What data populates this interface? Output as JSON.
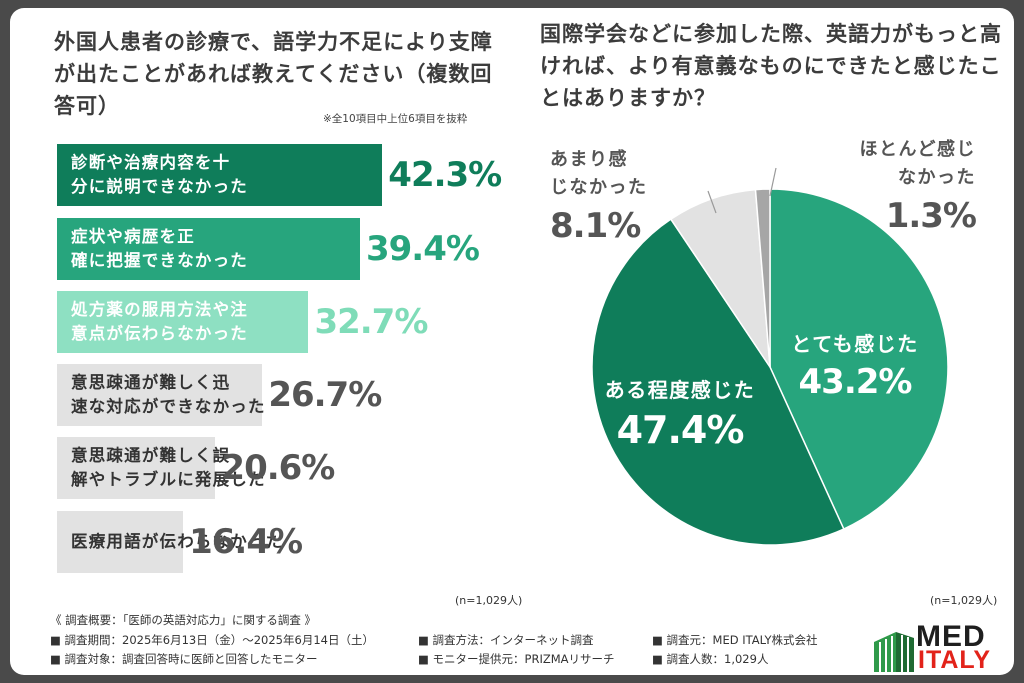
{
  "left": {
    "question": "外国人患者の診療で、語学力不足により支障が出たことがあれば教えてください（複数回答可）",
    "note": "※全10項目中上位6項目を抜粋",
    "n_label": "(n=1,029人)"
  },
  "right": {
    "question": "国際学会などに参加した際、英語力がもっと高ければ、より有意義なものにできたと感じたことはありますか？",
    "n_label": "(n=1,029人)"
  },
  "chart_data": [
    {
      "type": "bar",
      "title": "外国人患者の診療で、語学力不足により支障が出たことがあれば教えてください（複数回答可）",
      "categories": [
        "診断や治療内容を十分に説明できなかった",
        "症状や病歴を正確に把握できなかった",
        "処方薬の服用方法や注意点が伝わらなかった",
        "意思疎通が難しく迅速な対応ができなかった",
        "意思疎通が難しく誤解やトラブルに発展した",
        "医療用語が伝わらなかった"
      ],
      "values": [
        42.3,
        39.4,
        32.7,
        26.7,
        20.6,
        16.4
      ],
      "value_labels": [
        "42.3%",
        "39.4%",
        "32.7%",
        "26.7%",
        "20.6%",
        "16.4%"
      ],
      "unit": "%",
      "orientation": "horizontal",
      "colors": [
        "#0f7d5a",
        "#27a57d",
        "#8ee0c2",
        "#e2e2e2",
        "#e2e2e2",
        "#e2e2e2"
      ],
      "label_colors": [
        "#ffffff",
        "#ffffff",
        "#ffffff",
        "#333333",
        "#333333",
        "#333333"
      ],
      "value_colors": [
        "#0f7d5a",
        "#27a57d",
        "#7fdcb8",
        "#555555",
        "#555555",
        "#555555"
      ]
    },
    {
      "type": "pie",
      "title": "国際学会などに参加した際、英語力がもっと高ければ、より有意義なものにできたと感じたことはありますか？",
      "categories": [
        "とても感じた",
        "ある程度感じた",
        "あまり感じなかった",
        "ほとんど感じなかった"
      ],
      "values": [
        43.2,
        47.4,
        8.1,
        1.3
      ],
      "value_labels": [
        "43.2%",
        "47.4%",
        "8.1%",
        "1.3%"
      ],
      "colors": [
        "#27a57d",
        "#0f7d5a",
        "#e2e2e2",
        "#a6a6a6"
      ],
      "start": "12 o'clock",
      "direction": "clockwise"
    }
  ],
  "footer": {
    "summary": "《 調査概要：「医師の英語対応力」に関する調査 》",
    "period": "■ 調査期間：2025年6月13日（金）〜2025年6月14日（土）",
    "method": "■ 調査方法：インターネット調査",
    "organizer": "■ 調査元：MED ITALY株式会社",
    "target": "■ 調査対象：調査回答時に医師と回答したモニター",
    "provider": "■ モニター提供元：PRIZMAリサーチ",
    "count": "■ 調査人数：1,029人"
  },
  "logo": {
    "line1": "MED",
    "line2": "ITALY"
  }
}
